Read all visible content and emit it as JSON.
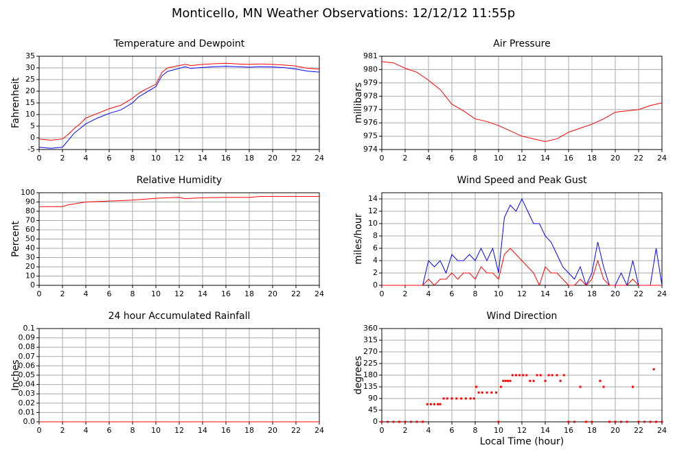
{
  "title": "Monticello, MN Weather Observations: 12/12/12 11:55p",
  "x_label": "Local Time (hour)",
  "chart_data": [
    {
      "type": "line",
      "title": "Temperature and Dewpoint",
      "y_label": "Fahrenheit",
      "grid": true,
      "x": [
        0,
        1,
        2,
        2.5,
        3,
        3.5,
        4,
        5,
        6,
        7,
        8,
        8.5,
        9,
        10,
        10.5,
        11,
        12,
        12.5,
        13,
        14,
        15,
        16,
        17,
        18,
        19,
        20,
        21,
        22,
        23,
        24
      ],
      "xlim": [
        0,
        24
      ],
      "xticks": [
        0,
        2,
        4,
        6,
        8,
        10,
        12,
        14,
        16,
        18,
        20,
        22,
        24
      ],
      "ylim": [
        -5,
        35
      ],
      "yticks": [
        -5,
        0,
        5,
        10,
        15,
        20,
        25,
        30,
        35
      ],
      "series": [
        {
          "color": "#ff0000",
          "values": [
            -0.5,
            -1,
            -0.5,
            1.5,
            4,
            6,
            8.5,
            10.5,
            12.5,
            14,
            17,
            19,
            20.5,
            23,
            28,
            30,
            31,
            31.5,
            31,
            31.5,
            31.8,
            32,
            31.7,
            31.5,
            31.7,
            31.5,
            31.2,
            30.8,
            29.8,
            29.5
          ]
        },
        {
          "color": "#0000ff",
          "values": [
            -4,
            -4.5,
            -4,
            -1,
            2,
            4,
            6,
            8.5,
            10.5,
            12,
            15,
            17.5,
            19,
            22,
            26.5,
            28.5,
            29.8,
            30.5,
            29.8,
            30.2,
            30.5,
            30.7,
            30.5,
            30.3,
            30.5,
            30.4,
            30.1,
            29.5,
            28.6,
            28.2
          ]
        }
      ]
    },
    {
      "type": "line",
      "title": "Air Pressure",
      "y_label": "millibars",
      "grid": true,
      "x": [
        0,
        1,
        2,
        3,
        4,
        5,
        6,
        7,
        8,
        9,
        10,
        11,
        12,
        13,
        14,
        15,
        16,
        17,
        18,
        19,
        20,
        21,
        22,
        23,
        24
      ],
      "xlim": [
        0,
        24
      ],
      "xticks": [
        0,
        2,
        4,
        6,
        8,
        10,
        12,
        14,
        16,
        18,
        20,
        22,
        24
      ],
      "ylim": [
        974,
        981
      ],
      "yticks": [
        974,
        975,
        976,
        977,
        978,
        979,
        980,
        981
      ],
      "series": [
        {
          "color": "#ff0000",
          "values": [
            980.6,
            980.5,
            980.1,
            979.8,
            979.2,
            978.5,
            977.4,
            976.9,
            976.3,
            976.1,
            975.8,
            975.4,
            975.0,
            974.8,
            974.6,
            974.8,
            975.3,
            975.6,
            975.9,
            976.3,
            976.8,
            976.9,
            977.0,
            977.3,
            977.5
          ]
        }
      ]
    },
    {
      "type": "line",
      "title": "Relative Humidity",
      "y_label": "Percent",
      "grid": true,
      "x": [
        0,
        2,
        2.5,
        3,
        4,
        5,
        6,
        7,
        8,
        9,
        10,
        11,
        12,
        12.5,
        13,
        14,
        16,
        18,
        19,
        20,
        24
      ],
      "xlim": [
        0,
        24
      ],
      "xticks": [
        0,
        2,
        4,
        6,
        8,
        10,
        12,
        14,
        16,
        18,
        20,
        22,
        24
      ],
      "ylim": [
        0,
        100
      ],
      "yticks": [
        0,
        10,
        20,
        30,
        40,
        50,
        60,
        70,
        80,
        90,
        100
      ],
      "series": [
        {
          "color": "#ff0000",
          "values": [
            85,
            85,
            87,
            88,
            90,
            90.5,
            91,
            91.5,
            92,
            93,
            94,
            94.5,
            95,
            93.5,
            94,
            94.5,
            95,
            95,
            96,
            96,
            96
          ]
        }
      ]
    },
    {
      "type": "line",
      "title": "Wind Speed and Peak Gust",
      "y_label": "miles/hour",
      "grid": true,
      "x": [
        0,
        0.5,
        1,
        1.5,
        2,
        2.5,
        3,
        3.5,
        4,
        4.5,
        5,
        5.5,
        6,
        6.5,
        7,
        7.5,
        8,
        8.5,
        9,
        9.5,
        10,
        10.5,
        11,
        11.5,
        12,
        12.5,
        13,
        13.5,
        14,
        14.5,
        15,
        15.5,
        16,
        16.5,
        17,
        17.5,
        18,
        18.5,
        19,
        19.5,
        20,
        20.5,
        21,
        21.5,
        22,
        22.5,
        23,
        23.5,
        24
      ],
      "xlim": [
        0,
        24
      ],
      "xticks": [
        0,
        2,
        4,
        6,
        8,
        10,
        12,
        14,
        16,
        18,
        20,
        22,
        24
      ],
      "ylim": [
        0,
        15
      ],
      "yticks": [
        0,
        2,
        4,
        6,
        8,
        10,
        12,
        14
      ],
      "series": [
        {
          "color": "#0000ff",
          "values": [
            0,
            0,
            0,
            0,
            0,
            0,
            0,
            0,
            4,
            3,
            4,
            2,
            5,
            4,
            4,
            5,
            4,
            6,
            4,
            6,
            2,
            11,
            13,
            12,
            14,
            12,
            10,
            10,
            8,
            7,
            5,
            3,
            2,
            1,
            3,
            0,
            2,
            7,
            3,
            0,
            0,
            2,
            0,
            4,
            0,
            0,
            0,
            6,
            0
          ]
        },
        {
          "color": "#ff0000",
          "values": [
            0,
            0,
            0,
            0,
            0,
            0,
            0,
            0,
            1,
            0,
            1,
            1,
            2,
            1,
            2,
            2,
            1,
            3,
            2,
            2,
            1,
            5,
            6,
            5,
            4,
            3,
            2,
            0,
            3,
            2,
            2,
            1,
            0,
            0,
            1,
            0,
            1,
            4,
            1,
            0,
            0,
            0,
            0,
            1,
            0,
            0,
            0,
            0,
            0
          ]
        }
      ]
    },
    {
      "type": "line",
      "title": "24 hour Accumulated Rainfall",
      "y_label": "Inches",
      "grid": true,
      "x": [
        0,
        24
      ],
      "xlim": [
        0,
        24
      ],
      "xticks": [
        0,
        2,
        4,
        6,
        8,
        10,
        12,
        14,
        16,
        18,
        20,
        22,
        24
      ],
      "ylim": [
        0,
        0.1
      ],
      "yticks": [
        {
          "value": 0,
          "label": "0.0"
        },
        0.01,
        0.02,
        0.03,
        0.04,
        0.05,
        0.06,
        0.07,
        0.08,
        0.09,
        0.1
      ],
      "series": [
        {
          "color": "#ff0000",
          "values": [
            0,
            0
          ]
        }
      ]
    },
    {
      "type": "scatter",
      "title": "Wind Direction",
      "y_label": "degrees",
      "grid": true,
      "x": [
        0,
        0.5,
        1,
        1.5,
        2,
        2.5,
        3,
        3.5,
        3.9,
        4.2,
        4.5,
        4.8,
        5,
        5.3,
        5.6,
        6,
        6.4,
        6.8,
        7.2,
        7.6,
        7.9,
        8.1,
        8.3,
        8.6,
        9,
        9.4,
        9.8,
        10,
        10.2,
        10.4,
        10.6,
        10.8,
        11,
        11.2,
        11.5,
        11.8,
        12.1,
        12.4,
        12.7,
        13,
        13.3,
        13.6,
        14,
        14.3,
        14.6,
        15,
        15.3,
        15.6,
        16,
        16.5,
        17,
        17.5,
        18,
        18.7,
        19,
        19.5,
        20,
        20.5,
        21,
        21.5,
        22,
        22.5,
        23,
        23.3,
        23.5,
        24
      ],
      "xlim": [
        0,
        24
      ],
      "xticks": [
        0,
        2,
        4,
        6,
        8,
        10,
        12,
        14,
        16,
        18,
        20,
        22,
        24
      ],
      "ylim": [
        0,
        360
      ],
      "yticks": [
        0,
        45,
        90,
        135,
        180,
        225,
        270,
        315,
        360
      ],
      "series": [
        {
          "color": "#ff0000",
          "values": [
            0,
            0,
            0,
            0,
            0,
            0,
            0,
            0,
            68,
            68,
            68,
            68,
            68,
            90,
            90,
            90,
            90,
            90,
            90,
            90,
            90,
            135,
            113,
            113,
            113,
            113,
            113,
            0,
            135,
            158,
            158,
            158,
            158,
            180,
            180,
            180,
            180,
            180,
            158,
            158,
            180,
            180,
            158,
            180,
            180,
            180,
            158,
            180,
            0,
            0,
            135,
            0,
            0,
            158,
            135,
            0,
            0,
            0,
            0,
            135,
            0,
            0,
            0,
            203,
            0,
            0
          ]
        }
      ]
    }
  ]
}
